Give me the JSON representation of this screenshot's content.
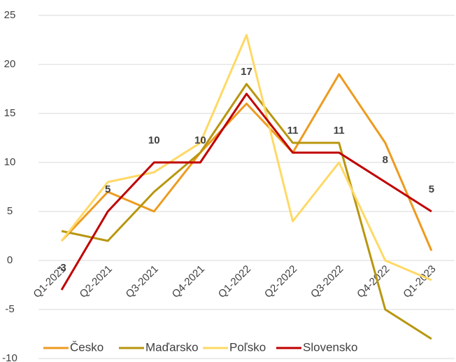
{
  "chart_data": {
    "type": "line",
    "categories": [
      "Q1-2021",
      "Q2-2021",
      "Q3-2021",
      "Q4-2021",
      "Q1-2022",
      "Q2-2022",
      "Q3-2022",
      "Q4-2022",
      "Q1-2023"
    ],
    "series": [
      {
        "name": "Česko",
        "color": "#ED9B1F",
        "values": [
          2,
          7,
          5,
          11,
          16,
          11,
          19,
          12,
          1
        ]
      },
      {
        "name": "Maďarsko",
        "color": "#B8960F",
        "values": [
          3,
          2,
          7,
          11,
          18,
          12,
          12,
          -5,
          -8
        ]
      },
      {
        "name": "Poľsko",
        "color": "#FFD966",
        "values": [
          2,
          8,
          9,
          12,
          23,
          4,
          10,
          0,
          -2
        ]
      },
      {
        "name": "Slovensko",
        "color": "#C00000",
        "values": [
          -3,
          5,
          10,
          10,
          17,
          11,
          11,
          8,
          5
        ],
        "data_labels": true
      }
    ],
    "ylim": [
      -10,
      25
    ],
    "yticks": [
      -10,
      -5,
      0,
      5,
      10,
      15,
      20,
      25
    ],
    "grid": true,
    "legend": "bottom"
  }
}
